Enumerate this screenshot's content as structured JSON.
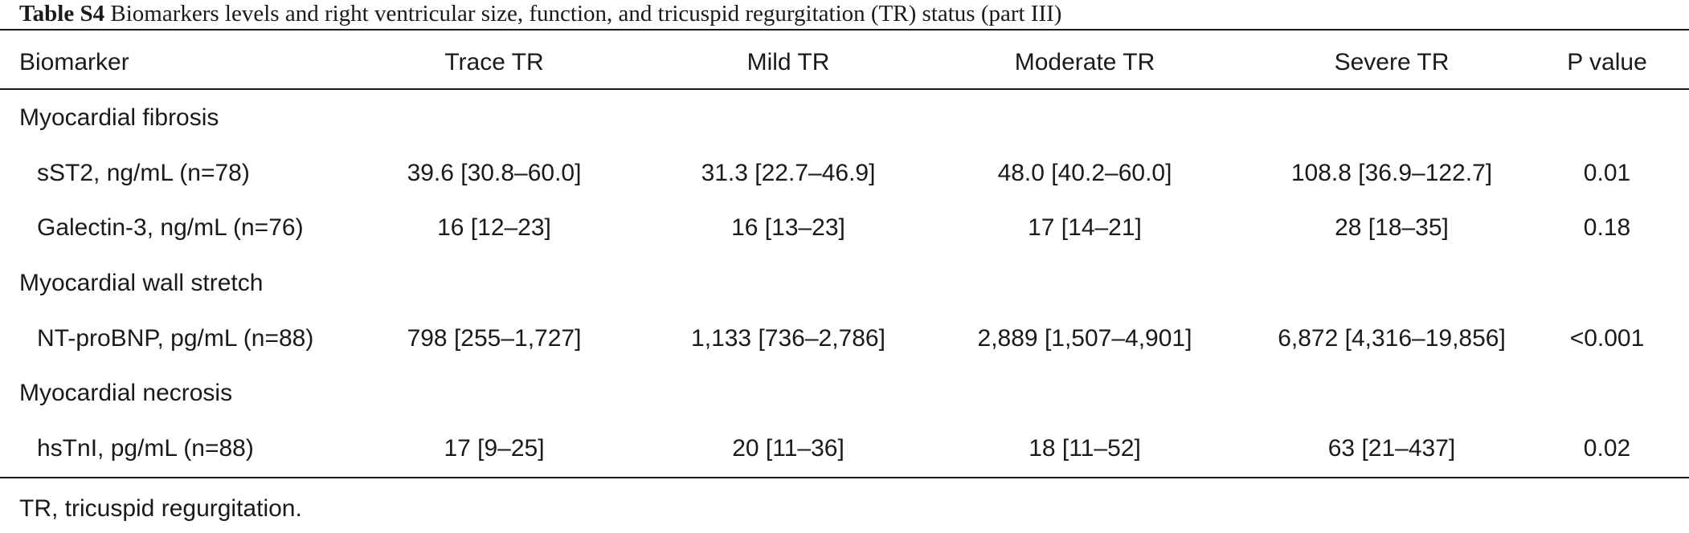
{
  "caption": {
    "label": "Table S4",
    "text": "Biomarkers levels and right ventricular size, function, and tricuspid regurgitation (TR) status (part III)"
  },
  "headers": [
    "Biomarker",
    "Trace TR",
    "Mild TR",
    "Moderate TR",
    "Severe TR",
    "P value"
  ],
  "groups": [
    {
      "label": "Myocardial fibrosis",
      "rows": [
        {
          "name": "sST2, ng/mL (n=78)",
          "trace": "39.6 [30.8–60.0]",
          "mild": "31.3 [22.7–46.9]",
          "moderate": "48.0 [40.2–60.0]",
          "severe": "108.8 [36.9–122.7]",
          "p": "0.01"
        },
        {
          "name": "Galectin-3, ng/mL (n=76)",
          "trace": "16 [12–23]",
          "mild": "16 [13–23]",
          "moderate": "17 [14–21]",
          "severe": "28 [18–35]",
          "p": "0.18"
        }
      ]
    },
    {
      "label": "Myocardial wall stretch",
      "rows": [
        {
          "name": "NT-proBNP, pg/mL (n=88)",
          "trace": "798 [255–1,727]",
          "mild": "1,133 [736–2,786]",
          "moderate": "2,889 [1,507–4,901]",
          "severe": "6,872 [4,316–19,856]",
          "p": "<0.001"
        }
      ]
    },
    {
      "label": "Myocardial necrosis",
      "rows": [
        {
          "name": "hsTnI, pg/mL (n=88)",
          "trace": "17 [9–25]",
          "mild": "20 [11–36]",
          "moderate": "18 [11–52]",
          "severe": "63 [21–437]",
          "p": "0.02"
        }
      ]
    }
  ],
  "footnote": "TR, tricuspid regurgitation."
}
